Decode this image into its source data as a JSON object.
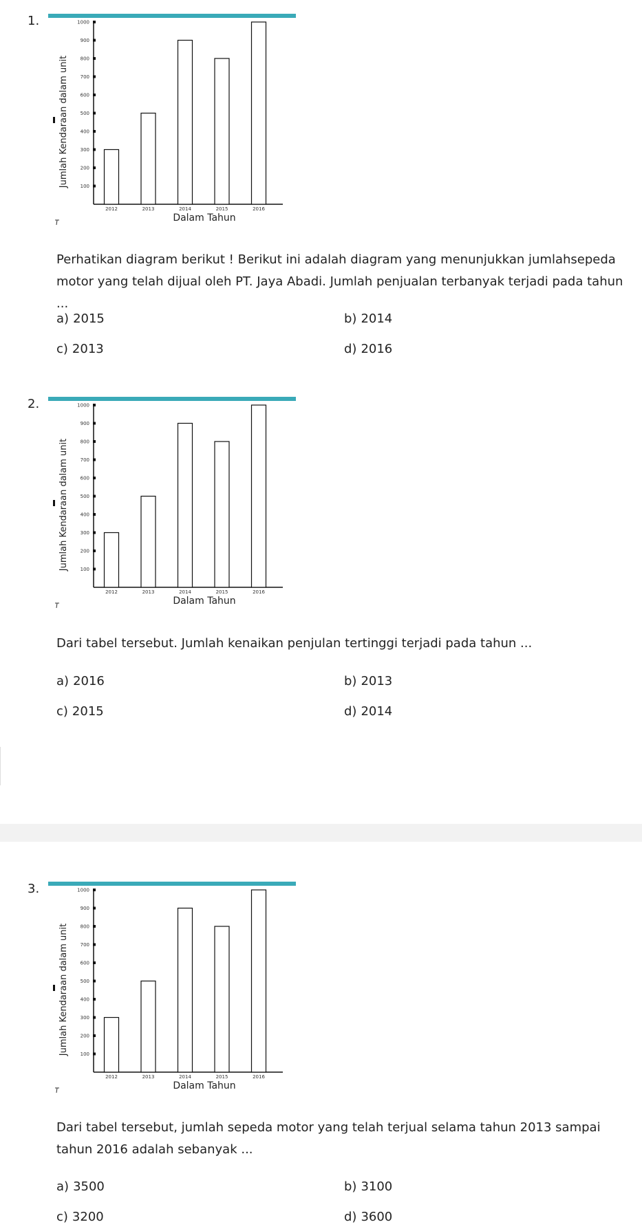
{
  "chart_data": [
    {
      "type": "bar",
      "categories": [
        "2012",
        "2013",
        "2014",
        "2015",
        "2016"
      ],
      "values": [
        300,
        500,
        900,
        800,
        1000
      ],
      "yticks": [
        100,
        200,
        300,
        400,
        500,
        600,
        700,
        800,
        900,
        1000
      ],
      "ylim": [
        0,
        1000
      ],
      "xlabel": "Dalam Tahun",
      "ylabel": "Jumlah Kendaraan dalam unit",
      "title": ""
    }
  ],
  "questions": [
    {
      "number": "1.",
      "text": "Perhatikan diagram berikut ! Berikut ini adalah diagram yang menunjukkan jumlahsepeda motor yang telah dijual oleh PT. Jaya Abadi. Jumlah penjualan terbanyak terjadi pada tahun ...",
      "options": [
        {
          "letter": "a)",
          "value": "2015"
        },
        {
          "letter": "b)",
          "value": "2014"
        },
        {
          "letter": "c)",
          "value": "2013"
        },
        {
          "letter": "d)",
          "value": "2016"
        }
      ]
    },
    {
      "number": "2.",
      "text": "Dari tabel tersebut. Jumlah kenaikan penjulan tertinggi terjadi pada tahun ...",
      "options": [
        {
          "letter": "a)",
          "value": "2016"
        },
        {
          "letter": "b)",
          "value": "2013"
        },
        {
          "letter": "c)",
          "value": "2015"
        },
        {
          "letter": "d)",
          "value": "2014"
        }
      ]
    },
    {
      "number": "3.",
      "text": "Dari tabel tersebut, jumlah sepeda motor yang telah terjual selama tahun 2013 sampai tahun 2016 adalah sebanyak ...",
      "options": [
        {
          "letter": "a)",
          "value": "3500"
        },
        {
          "letter": "b)",
          "value": "3100"
        },
        {
          "letter": "c)",
          "value": "3200"
        },
        {
          "letter": "d)",
          "value": "3600"
        }
      ]
    }
  ],
  "colors": {
    "header_bar": "#3aaab8",
    "bar_fill": "#ffffff",
    "bar_stroke": "#111111"
  }
}
